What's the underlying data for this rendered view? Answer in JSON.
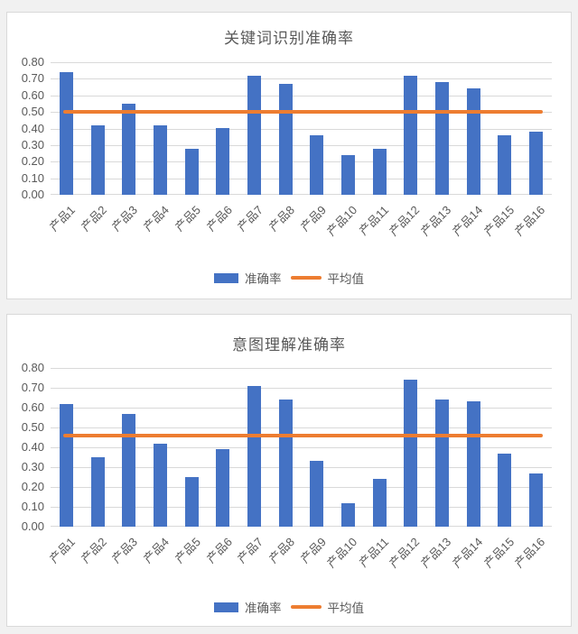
{
  "colors": {
    "bar_fill": "#4472C4",
    "average_line": "#ED7D31",
    "gridline": "#D9D9D9",
    "panel_border": "#D9D9D9",
    "text": "#595959",
    "page_background": "#F1F1F1",
    "panel_background": "#FFFFFF"
  },
  "chart_data": [
    {
      "type": "bar",
      "title": "关键词识别准确率",
      "categories": [
        "产品1",
        "产品2",
        "产品3",
        "产品4",
        "产品5",
        "产品6",
        "产品7",
        "产品8",
        "产品9",
        "产品10",
        "产品11",
        "产品12",
        "产品13",
        "产品14",
        "产品15",
        "产品16"
      ],
      "series": [
        {
          "name": "准确率",
          "type": "bar",
          "color": "#4472C4",
          "values": [
            0.74,
            0.42,
            0.55,
            0.42,
            0.28,
            0.4,
            0.72,
            0.67,
            0.36,
            0.24,
            0.28,
            0.72,
            0.68,
            0.64,
            0.36,
            0.38
          ]
        },
        {
          "name": "平均值",
          "type": "line",
          "color": "#ED7D31",
          "value": 0.5
        }
      ],
      "ylim": [
        0,
        0.8
      ],
      "ytick_labels": [
        "0.80",
        "0.70",
        "0.60",
        "0.50",
        "0.40",
        "0.30",
        "0.20",
        "0.10",
        "0.00"
      ],
      "grid": true,
      "legend_position": "bottom",
      "x_label_rotation_deg": -45
    },
    {
      "type": "bar",
      "title": "意图理解准确率",
      "categories": [
        "产品1",
        "产品2",
        "产品3",
        "产品4",
        "产品5",
        "产品6",
        "产品7",
        "产品8",
        "产品9",
        "产品10",
        "产品11",
        "产品12",
        "产品13",
        "产品14",
        "产品15",
        "产品16"
      ],
      "series": [
        {
          "name": "准确率",
          "type": "bar",
          "color": "#4472C4",
          "values": [
            0.62,
            0.35,
            0.57,
            0.42,
            0.25,
            0.39,
            0.71,
            0.64,
            0.33,
            0.12,
            0.24,
            0.74,
            0.64,
            0.63,
            0.37,
            0.27
          ]
        },
        {
          "name": "平均值",
          "type": "line",
          "color": "#ED7D31",
          "value": 0.46
        }
      ],
      "ylim": [
        0,
        0.8
      ],
      "ytick_labels": [
        "0.80",
        "0.70",
        "0.60",
        "0.50",
        "0.40",
        "0.30",
        "0.20",
        "0.10",
        "0.00"
      ],
      "grid": true,
      "legend_position": "bottom",
      "x_label_rotation_deg": -45
    }
  ]
}
